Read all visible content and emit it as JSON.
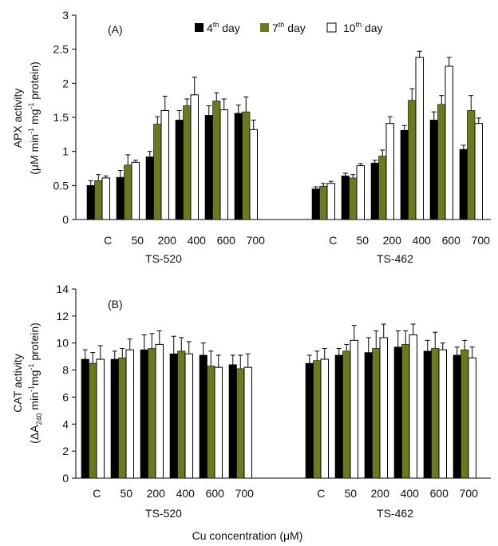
{
  "legend": {
    "day4": {
      "prefix": "4",
      "sup": "th",
      "suffix": " day"
    },
    "day7": {
      "prefix": "7",
      "sup": "th",
      "suffix": " day"
    },
    "day10": {
      "prefix": "10",
      "sup": "th",
      "suffix": " day"
    }
  },
  "colors": {
    "day4": "#000000",
    "day7": "#6b7a1f",
    "day10": "#ffffff"
  },
  "x_title": "Cu concentration (μM)",
  "chart_data": [
    {
      "type": "bar",
      "panel": "(A)",
      "ylabel_line1": "APX activity",
      "ylabel_line2_parts": [
        "(μM min",
        "-1",
        " mg",
        "-1",
        " protein)"
      ],
      "ylim": [
        0,
        3
      ],
      "yticks": [
        "0",
        "0.5",
        "1",
        "1.5",
        "2",
        "2.5",
        "3"
      ],
      "groups": [
        {
          "name": "TS-520",
          "categories": [
            "C",
            "50",
            "200",
            "400",
            "600",
            "700"
          ],
          "series": [
            {
              "key": "day4",
              "values": [
                0.5,
                0.62,
                0.92,
                1.46,
                1.53,
                1.56
              ],
              "errors": [
                0.07,
                0.1,
                0.08,
                0.14,
                0.14,
                0.12
              ]
            },
            {
              "key": "day7",
              "values": [
                0.57,
                0.8,
                1.4,
                1.67,
                1.74,
                1.58
              ],
              "errors": [
                0.09,
                0.15,
                0.11,
                0.1,
                0.12,
                0.22
              ]
            },
            {
              "key": "day10",
              "values": [
                0.61,
                0.84,
                1.6,
                1.83,
                1.61,
                1.32
              ],
              "errors": [
                0.03,
                0.03,
                0.21,
                0.26,
                0.16,
                0.14
              ]
            }
          ]
        },
        {
          "name": "TS-462",
          "categories": [
            "C",
            "50",
            "200",
            "400",
            "600",
            "700"
          ],
          "series": [
            {
              "key": "day4",
              "values": [
                0.45,
                0.64,
                0.83,
                1.31,
                1.46,
                1.03
              ],
              "errors": [
                0.03,
                0.04,
                0.04,
                0.07,
                0.12,
                0.06
              ]
            },
            {
              "key": "day7",
              "values": [
                0.49,
                0.61,
                0.93,
                1.75,
                1.69,
                1.6
              ],
              "errors": [
                0.04,
                0.05,
                0.09,
                0.17,
                0.13,
                0.22
              ]
            },
            {
              "key": "day10",
              "values": [
                0.53,
                0.79,
                1.41,
                2.38,
                2.25,
                1.41
              ],
              "errors": [
                0.03,
                0.03,
                0.1,
                0.09,
                0.13,
                0.08
              ]
            }
          ]
        }
      ]
    },
    {
      "type": "bar",
      "panel": "(B)",
      "ylabel_line1": "CAT activity",
      "ylabel_line2_parts": [
        "(ΔA",
        "240",
        " min",
        "-1",
        "mg",
        "-1",
        " protein)"
      ],
      "ylim": [
        0,
        14
      ],
      "yticks": [
        "0",
        "2",
        "4",
        "6",
        "8",
        "10",
        "12",
        "14"
      ],
      "groups": [
        {
          "name": "TS-520",
          "categories": [
            "C",
            "50",
            "200",
            "400",
            "600",
            "700"
          ],
          "series": [
            {
              "key": "day4",
              "values": [
                8.8,
                8.8,
                9.5,
                9.2,
                9.1,
                8.4
              ],
              "errors": [
                0.7,
                0.6,
                1.1,
                1.3,
                0.9,
                0.7
              ]
            },
            {
              "key": "day7",
              "values": [
                8.5,
                8.9,
                9.6,
                9.4,
                8.3,
                8.1
              ],
              "errors": [
                0.8,
                0.7,
                1.1,
                1.0,
                1.1,
                1.0
              ]
            },
            {
              "key": "day10",
              "values": [
                8.8,
                9.5,
                9.9,
                9.2,
                8.2,
                8.2
              ],
              "errors": [
                1.0,
                0.8,
                1.0,
                0.9,
                0.9,
                1.0
              ]
            }
          ]
        },
        {
          "name": "TS-462",
          "categories": [
            "C",
            "50",
            "200",
            "400",
            "600",
            "700"
          ],
          "series": [
            {
              "key": "day4",
              "values": [
                8.5,
                9.1,
                9.3,
                9.7,
                9.4,
                9.1
              ],
              "errors": [
                0.6,
                0.5,
                1.1,
                1.2,
                0.8,
                0.6
              ]
            },
            {
              "key": "day7",
              "values": [
                8.7,
                9.4,
                9.6,
                9.9,
                9.6,
                9.5
              ],
              "errors": [
                0.7,
                0.5,
                1.3,
                1.0,
                1.2,
                0.7
              ]
            },
            {
              "key": "day10",
              "values": [
                8.8,
                10.2,
                10.4,
                10.6,
                9.5,
                8.9
              ],
              "errors": [
                0.8,
                1.1,
                1.0,
                0.8,
                0.5,
                0.8
              ]
            }
          ]
        }
      ]
    }
  ]
}
